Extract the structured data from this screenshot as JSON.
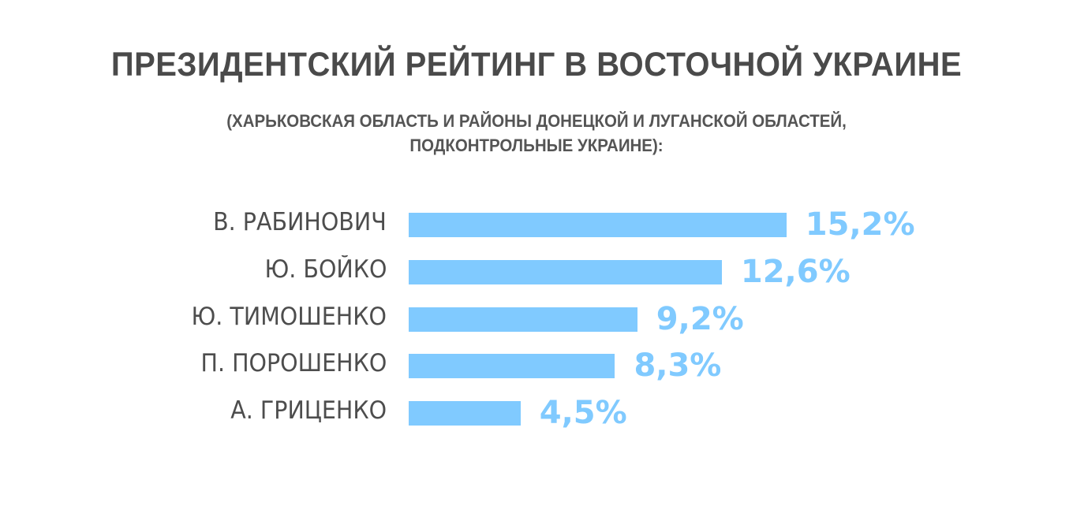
{
  "header": {
    "title": "ПРЕЗИДЕНТСКИЙ РЕЙТИНГ В ВОСТОЧНОЙ УКРАИНЕ",
    "subtitle_line1": "(ХАРЬКОВСКАЯ ОБЛАСТЬ И РАЙОНЫ ДОНЕЦКОЙ И ЛУГАНСКОЙ ОБЛАСТЕЙ,",
    "subtitle_line2": "ПОДКОНТРОЛЬНЫЕ УКРАИНЕ):"
  },
  "colors": {
    "bar": "#80caff",
    "value": "#80caff",
    "title": "#4a4a4a",
    "label": "#4d4d4d"
  },
  "rows": [
    {
      "label": "В. РАБИНОВИЧ",
      "value_text": "15,2%",
      "value": 15.2
    },
    {
      "label": "Ю. БОЙКО",
      "value_text": "12,6%",
      "value": 12.6
    },
    {
      "label": "Ю. ТИМОШЕНКО",
      "value_text": "9,2%",
      "value": 9.2
    },
    {
      "label": "П. ПОРОШЕНКО",
      "value_text": "8,3%",
      "value": 8.3
    },
    {
      "label": "А. ГРИЦЕНКО",
      "value_text": "4,5%",
      "value": 4.5
    }
  ],
  "chart_data": {
    "type": "bar",
    "orientation": "horizontal",
    "title": "ПРЕЗИДЕНТСКИЙ РЕЙТИНГ В ВОСТОЧНОЙ УКРАИНЕ",
    "subtitle": "(ХАРЬКОВСКАЯ ОБЛАСТЬ И РАЙОНЫ ДОНЕЦКОЙ И ЛУГАНСКОЙ ОБЛАСТЕЙ, ПОДКОНТРОЛЬНЫЕ УКРАИНЕ):",
    "categories": [
      "В. РАБИНОВИЧ",
      "Ю. БОЙКО",
      "Ю. ТИМОШЕНКО",
      "П. ПОРОШЕНКО",
      "А. ГРИЦЕНКО"
    ],
    "values": [
      15.2,
      12.6,
      9.2,
      8.3,
      4.5
    ],
    "unit": "%",
    "xlabel": "",
    "ylabel": "",
    "grid": false,
    "legend": null,
    "data_labels": true
  }
}
